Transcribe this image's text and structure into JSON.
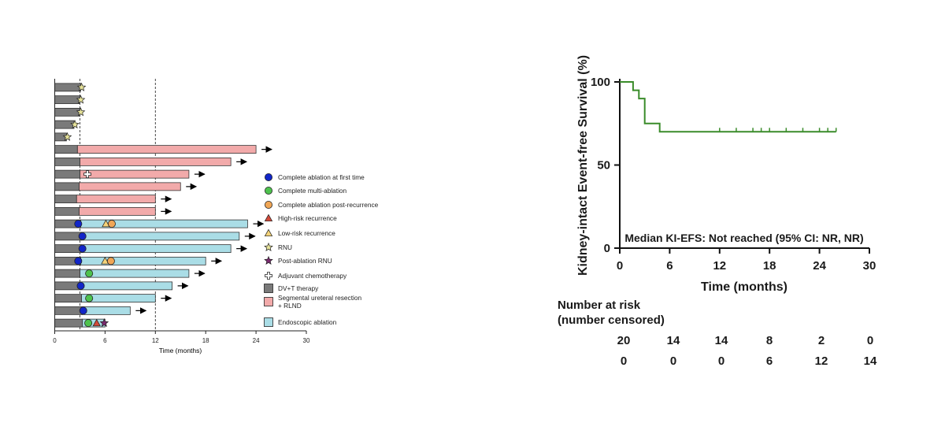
{
  "chart_data": [
    {
      "type": "swimmer",
      "xlabel": "Time (months)",
      "xlim": [
        0,
        30
      ],
      "xticks": [
        0,
        6,
        12,
        18,
        24,
        30
      ],
      "reference_lines": [
        3,
        12
      ],
      "colors": {
        "dvt": "#7a7a7a",
        "segmental": "#f2aaaa",
        "endoscopic": "#aadde6",
        "complete_first": "#1226c8",
        "complete_multi": "#4ec24e",
        "complete_post": "#f0a656",
        "high_risk": "#d24a3a",
        "low_risk": "#f4d37a",
        "rnu": "#e7e39a",
        "post_rnu": "#7a2a70"
      },
      "legend": [
        {
          "key": "complete_first",
          "shape": "circle",
          "label": "Complete ablation at first time"
        },
        {
          "key": "complete_multi",
          "shape": "circle",
          "label": "Complete multi-ablation"
        },
        {
          "key": "complete_post",
          "shape": "circle",
          "label": "Complete ablation post-recurrence"
        },
        {
          "key": "high_risk",
          "shape": "triangle",
          "label": "High-risk recurrence"
        },
        {
          "key": "low_risk",
          "shape": "triangle",
          "label": "Low-risk recurrence"
        },
        {
          "key": "rnu",
          "shape": "star",
          "label": "RNU"
        },
        {
          "key": "post_rnu",
          "shape": "star",
          "label": "Post-ablation RNU"
        },
        {
          "key": "chemo",
          "shape": "cross",
          "label": "Adjuvant chemotherapy"
        },
        {
          "key": "dvt",
          "shape": "square",
          "label": "DV+T therapy"
        },
        {
          "key": "segmental",
          "shape": "square",
          "label": "Segmental ureteral resection\n+ RLND"
        },
        {
          "key": "endoscopic",
          "shape": "square",
          "label": "Endoscopic ablation"
        }
      ],
      "patients": [
        {
          "dvt": 3.1,
          "markers": [
            {
              "type": "rnu",
              "t": 3.2
            }
          ]
        },
        {
          "dvt": 3.0,
          "markers": [
            {
              "type": "rnu",
              "t": 3.1
            }
          ]
        },
        {
          "dvt": 3.0,
          "markers": [
            {
              "type": "rnu",
              "t": 3.1
            }
          ]
        },
        {
          "dvt": 2.3,
          "markers": [
            {
              "type": "rnu",
              "t": 2.4
            }
          ]
        },
        {
          "dvt": 1.4,
          "markers": [
            {
              "type": "rnu",
              "t": 1.5
            }
          ]
        },
        {
          "dvt": 2.7,
          "second": {
            "type": "segmental",
            "end": 24
          },
          "arrow": true,
          "markers": []
        },
        {
          "dvt": 3.0,
          "second": {
            "type": "segmental",
            "end": 21
          },
          "arrow": true,
          "markers": []
        },
        {
          "dvt": 3.0,
          "second": {
            "type": "segmental",
            "end": 16
          },
          "arrow": true,
          "markers": [
            {
              "type": "chemo",
              "t": 3.9
            }
          ]
        },
        {
          "dvt": 2.9,
          "second": {
            "type": "segmental",
            "end": 15
          },
          "arrow": true,
          "markers": []
        },
        {
          "dvt": 2.6,
          "second": {
            "type": "segmental",
            "end": 12
          },
          "arrow": true,
          "markers": []
        },
        {
          "dvt": 2.9,
          "second": {
            "type": "segmental",
            "end": 12
          },
          "arrow": true,
          "markers": []
        },
        {
          "dvt": 3.1,
          "second": {
            "type": "endoscopic",
            "end": 23
          },
          "arrow": true,
          "markers": [
            {
              "type": "complete_first",
              "t": 2.8
            },
            {
              "type": "low_risk",
              "t": 6.1
            },
            {
              "type": "complete_post",
              "t": 6.8
            }
          ]
        },
        {
          "dvt": 3.2,
          "second": {
            "type": "endoscopic",
            "end": 22
          },
          "arrow": true,
          "markers": [
            {
              "type": "complete_first",
              "t": 3.3
            }
          ]
        },
        {
          "dvt": 3.2,
          "second": {
            "type": "endoscopic",
            "end": 21
          },
          "arrow": true,
          "markers": [
            {
              "type": "complete_first",
              "t": 3.3
            }
          ]
        },
        {
          "dvt": 3.1,
          "second": {
            "type": "endoscopic",
            "end": 18
          },
          "arrow": true,
          "markers": [
            {
              "type": "complete_first",
              "t": 2.8
            },
            {
              "type": "low_risk",
              "t": 6.0
            },
            {
              "type": "complete_post",
              "t": 6.7
            }
          ]
        },
        {
          "dvt": 3.0,
          "second": {
            "type": "endoscopic",
            "end": 16
          },
          "arrow": true,
          "markers": [
            {
              "type": "complete_multi",
              "t": 4.1
            }
          ]
        },
        {
          "dvt": 3.1,
          "second": {
            "type": "endoscopic",
            "end": 14
          },
          "arrow": true,
          "markers": [
            {
              "type": "complete_first",
              "t": 3.1
            }
          ]
        },
        {
          "dvt": 3.2,
          "second": {
            "type": "endoscopic",
            "end": 12
          },
          "arrow": true,
          "markers": [
            {
              "type": "complete_multi",
              "t": 4.1
            }
          ]
        },
        {
          "dvt": 3.3,
          "second": {
            "type": "endoscopic",
            "end": 9
          },
          "arrow": true,
          "markers": [
            {
              "type": "complete_first",
              "t": 3.4
            }
          ]
        },
        {
          "dvt": 3.3,
          "second": {
            "type": "endoscopic",
            "end": 6
          },
          "arrow": false,
          "markers": [
            {
              "type": "complete_multi",
              "t": 4.0
            },
            {
              "type": "high_risk",
              "t": 5.0
            },
            {
              "type": "post_rnu",
              "t": 5.9
            }
          ]
        }
      ]
    },
    {
      "type": "line",
      "subtype": "kaplan-meier",
      "title": "",
      "ylabel": "Kidney-intact Event-free Survival (%)",
      "xlabel": "Time (months)",
      "xlim": [
        0,
        30
      ],
      "ylim": [
        0,
        100
      ],
      "xticks": [
        0,
        6,
        12,
        18,
        24,
        30
      ],
      "yticks": [
        0,
        50,
        100
      ],
      "color": "#3a8c2a",
      "annotation": "Median KI-EFS: Not reached (95% CI: NR, NR)",
      "steps": [
        [
          0,
          100
        ],
        [
          1.6,
          100
        ],
        [
          1.6,
          95
        ],
        [
          2.3,
          95
        ],
        [
          2.3,
          90
        ],
        [
          3.0,
          90
        ],
        [
          3.0,
          75
        ],
        [
          4.8,
          75
        ],
        [
          4.8,
          70
        ],
        [
          26,
          70
        ]
      ],
      "censor_times": [
        12,
        14,
        16,
        17,
        18,
        20,
        22,
        24,
        25,
        26
      ],
      "risk_table": {
        "title": "Number at risk",
        "subtitle": "(number censored)",
        "times": [
          0,
          6,
          12,
          18,
          24,
          30
        ],
        "at_risk": [
          "20",
          "14",
          "14",
          "8",
          "2",
          "0"
        ],
        "censored": [
          "0",
          "0",
          "0",
          "6",
          "12",
          "14"
        ]
      }
    }
  ]
}
